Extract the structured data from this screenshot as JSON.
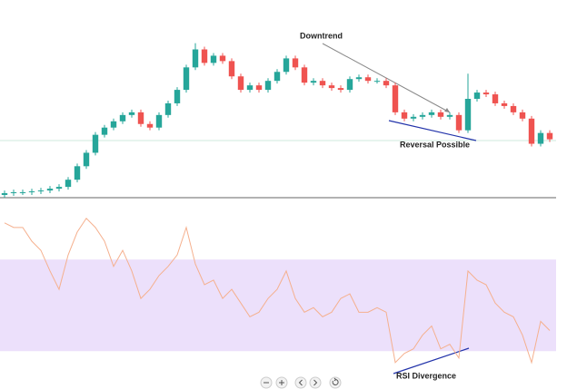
{
  "chart_data": [
    {
      "type": "candlestick",
      "categories": [
        null,
        null,
        null,
        null,
        null,
        null,
        null,
        null,
        null,
        null,
        null,
        null,
        null,
        null,
        null,
        null,
        null,
        null,
        null,
        null,
        null,
        null,
        null,
        null,
        null,
        null,
        null,
        null,
        null,
        null,
        null,
        null,
        null,
        null,
        null,
        null,
        null,
        null,
        null,
        null,
        null,
        null,
        null,
        null,
        null,
        null,
        null,
        null,
        null,
        null,
        null,
        null,
        null,
        null,
        null,
        null,
        null,
        null,
        null,
        null,
        null
      ],
      "open": [
        3,
        5,
        6,
        6,
        7,
        8,
        10,
        12,
        20,
        35,
        50,
        70,
        78,
        85,
        92,
        95,
        82,
        78,
        92,
        105,
        120,
        145,
        165,
        150,
        158,
        152,
        135,
        120,
        125,
        120,
        130,
        140,
        155,
        145,
        128,
        130,
        125,
        122,
        120,
        132,
        134,
        130,
        130,
        125,
        95,
        88,
        90,
        92,
        95,
        90,
        92,
        75,
        110,
        117,
        115,
        105,
        102,
        95,
        88,
        60,
        72
      ],
      "high": [
        8,
        9,
        9,
        10,
        11,
        13,
        15,
        23,
        38,
        53,
        73,
        81,
        88,
        95,
        98,
        98,
        85,
        95,
        108,
        123,
        148,
        172,
        168,
        161,
        161,
        155,
        138,
        128,
        128,
        133,
        143,
        158,
        158,
        148,
        133,
        133,
        128,
        125,
        135,
        137,
        137,
        133,
        133,
        128,
        98,
        93,
        95,
        98,
        98,
        95,
        95,
        138,
        120,
        120,
        118,
        108,
        105,
        98,
        91,
        75,
        75
      ],
      "low": [
        0,
        2,
        3,
        3,
        4,
        5,
        7,
        9,
        17,
        32,
        47,
        67,
        75,
        82,
        89,
        79,
        75,
        75,
        89,
        102,
        117,
        142,
        147,
        147,
        149,
        132,
        117,
        117,
        117,
        117,
        127,
        137,
        142,
        125,
        125,
        122,
        119,
        117,
        117,
        129,
        127,
        127,
        122,
        92,
        85,
        85,
        87,
        89,
        87,
        87,
        72,
        72,
        107,
        112,
        102,
        99,
        92,
        85,
        57,
        57,
        62
      ],
      "close": [
        5,
        6,
        6,
        7,
        8,
        10,
        12,
        20,
        35,
        50,
        70,
        78,
        85,
        92,
        95,
        82,
        78,
        92,
        105,
        120,
        145,
        165,
        150,
        158,
        152,
        135,
        120,
        125,
        120,
        130,
        140,
        155,
        145,
        128,
        130,
        125,
        122,
        120,
        132,
        134,
        130,
        130,
        125,
        95,
        88,
        90,
        92,
        95,
        90,
        92,
        75,
        110,
        117,
        115,
        105,
        102,
        95,
        88,
        60,
        72,
        65
      ],
      "ylim": [
        0,
        220
      ],
      "up_color": "#26a69a",
      "down_color": "#ef5350",
      "annotations": [
        "Downtrend",
        "Reversal Possible"
      ]
    },
    {
      "type": "line",
      "categories": [
        null,
        null,
        null,
        null,
        null,
        null,
        null,
        null,
        null,
        null,
        null,
        null,
        null,
        null,
        null,
        null,
        null,
        null,
        null,
        null,
        null,
        null,
        null,
        null,
        null,
        null,
        null,
        null,
        null,
        null,
        null,
        null,
        null,
        null,
        null,
        null,
        null,
        null,
        null,
        null,
        null,
        null,
        null,
        null,
        null,
        null,
        null,
        null,
        null,
        null,
        null,
        null,
        null,
        null,
        null,
        null,
        null,
        null,
        null,
        null,
        null
      ],
      "values": [
        86,
        84,
        84,
        78,
        74,
        65,
        57,
        72,
        82,
        88,
        84,
        78,
        67,
        74,
        65,
        53,
        57,
        63,
        67,
        72,
        84,
        68,
        59,
        61,
        53,
        57,
        51,
        45,
        47,
        53,
        57,
        65,
        53,
        47,
        49,
        45,
        47,
        53,
        55,
        47,
        47,
        49,
        47,
        25,
        29,
        31,
        37,
        41,
        31,
        33,
        27,
        65,
        61,
        59,
        51,
        47,
        45,
        37,
        25,
        43,
        39
      ],
      "color": "#f5b08e",
      "ylim": [
        21,
        97
      ],
      "band": [
        30,
        70
      ],
      "band_color": "#ece0fb",
      "annotations": [
        "RSI Divergence"
      ]
    }
  ]
}
